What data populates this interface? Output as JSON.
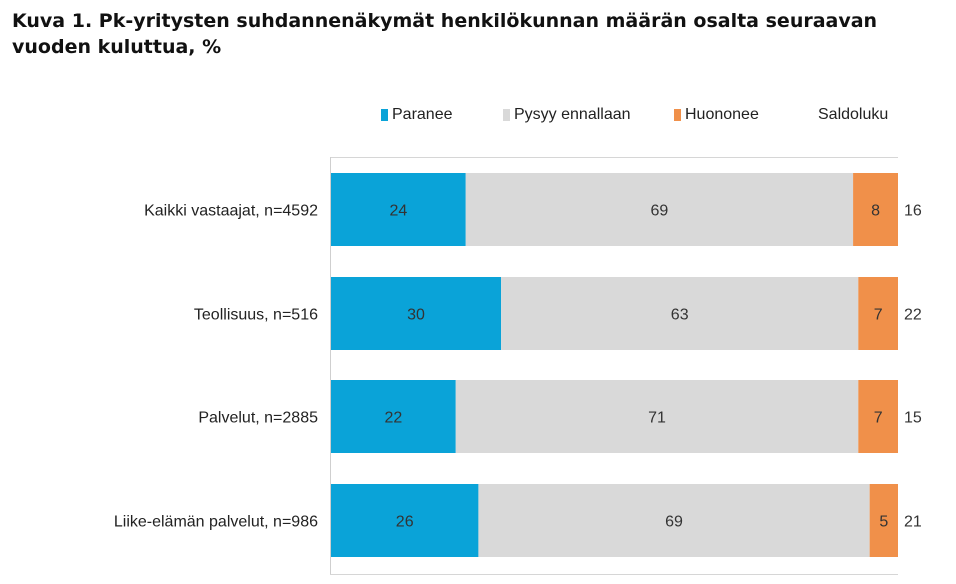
{
  "title": "Kuva 1. Pk-yritysten suhdannenäkymät henkilökunnan määrän osalta seuraavan vuoden kuluttua, %",
  "colors": {
    "paranee": "#0aa3d8",
    "pysyy": "#d9d9d9",
    "huononee": "#f0904a"
  },
  "chart_data": {
    "type": "bar",
    "orientation": "horizontal",
    "stacked": true,
    "title": "Kuva 1. Pk-yritysten suhdannenäkymät henkilökunnan määrän osalta seuraavan vuoden kuluttua, %",
    "categories": [
      "Kaikki vastaajat, n=4592",
      "Teollisuus, n=516",
      "Palvelut, n=2885",
      "Liike-elämän palvelut, n=986"
    ],
    "series": [
      {
        "name": "Paranee",
        "values": [
          24,
          30,
          22,
          26
        ]
      },
      {
        "name": "Pysyy ennallaan",
        "values": [
          69,
          63,
          71,
          69
        ]
      },
      {
        "name": "Huononee",
        "values": [
          8,
          7,
          7,
          5
        ]
      }
    ],
    "saldoluku_label": "Saldoluku",
    "saldoluku": [
      16,
      22,
      15,
      21
    ],
    "xlim": [
      0,
      100
    ],
    "legend_position": "top",
    "grid": false
  }
}
